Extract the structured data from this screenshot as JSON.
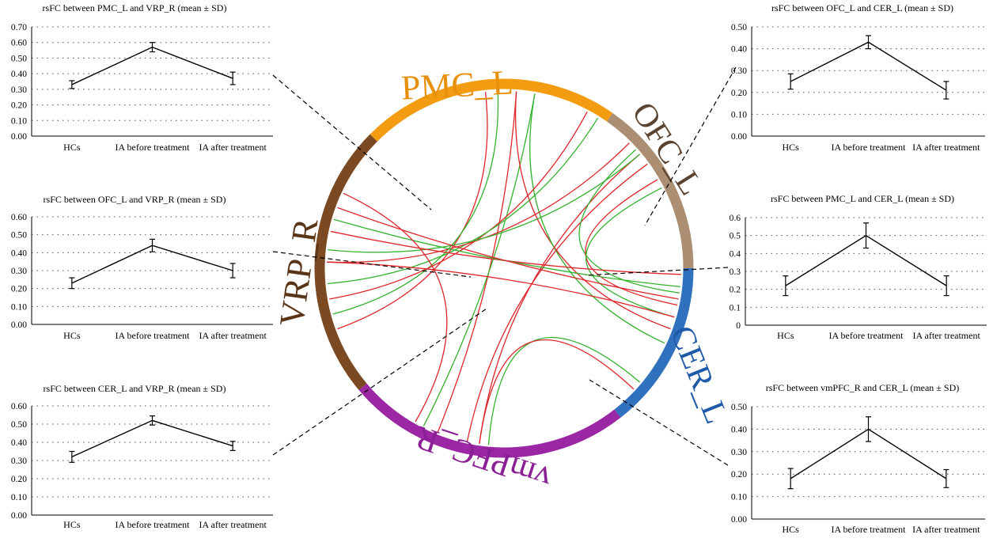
{
  "figure": {
    "circle_labels": [
      {
        "key": "pmc",
        "text": "PMC_L",
        "color": "#e8900c"
      },
      {
        "key": "ofc",
        "text": "OFC_L",
        "color": "#5a4330"
      },
      {
        "key": "cer",
        "text": "CER_L",
        "color": "#1f5aa8"
      },
      {
        "key": "vmpfc",
        "text": "vmPFC_R",
        "color": "#8b1f96"
      },
      {
        "key": "vrp",
        "text": "VRP_R",
        "color": "#5a3417"
      }
    ],
    "segment_colors": {
      "pmc": "#f39c11",
      "ofc": "#ac8f73",
      "cer": "#3071bd",
      "vmpfc": "#9c27a5",
      "vrp": "#7b4a22"
    },
    "link_colors": {
      "red": "#e0262b",
      "green": "#33b22c"
    }
  },
  "chart_data": [
    {
      "type": "line",
      "title": "rsFC between PMC_L and VRP_R (mean ± SD)",
      "categories": [
        "HCs",
        "IA before treatment",
        "IA after treatment"
      ],
      "values": [
        0.33,
        0.57,
        0.37
      ],
      "errors": [
        0.025,
        0.03,
        0.04
      ],
      "ylim": [
        0,
        0.7
      ],
      "yticks": [
        "0.00",
        "0.10",
        "0.20",
        "0.30",
        "0.40",
        "0.50",
        "0.60",
        "0.70"
      ],
      "grid": "dotted horizontal"
    },
    {
      "type": "line",
      "title": "rsFC between OFC_L and VRP_R (mean ± SD)",
      "categories": [
        "HCs",
        "IA before treatment",
        "IA after treatment"
      ],
      "values": [
        0.23,
        0.44,
        0.3
      ],
      "errors": [
        0.03,
        0.035,
        0.04
      ],
      "ylim": [
        0,
        0.6
      ],
      "yticks": [
        "0.00",
        "0.10",
        "0.20",
        "0.30",
        "0.40",
        "0.50",
        "0.60"
      ],
      "grid": "dotted horizontal"
    },
    {
      "type": "line",
      "title": "rsFC between CER_L and VRP_R (mean ± SD)",
      "categories": [
        "HCs",
        "IA before treatment",
        "IA after treatment"
      ],
      "values": [
        0.32,
        0.52,
        0.38
      ],
      "errors": [
        0.03,
        0.025,
        0.025
      ],
      "ylim": [
        0,
        0.6
      ],
      "yticks": [
        "0.00",
        "0.10",
        "0.20",
        "0.30",
        "0.40",
        "0.50",
        "0.60"
      ],
      "grid": "dotted horizontal"
    },
    {
      "type": "line",
      "title": "rsFC between OFC_L and CER_L (mean ± SD)",
      "categories": [
        "HCs",
        "IA before treatment",
        "IA after treatment"
      ],
      "values": [
        0.25,
        0.43,
        0.21
      ],
      "errors": [
        0.035,
        0.03,
        0.04
      ],
      "ylim": [
        0,
        0.5
      ],
      "yticks": [
        "0.00",
        "0.10",
        "0.20",
        "0.30",
        "0.40",
        "0.50"
      ],
      "grid": "dotted horizontal"
    },
    {
      "type": "line",
      "title": "rsFC between PMC_L and CER_L (mean ± SD)",
      "categories": [
        "HCs",
        "IA before treatment",
        "IA after treatment"
      ],
      "values": [
        0.22,
        0.5,
        0.22
      ],
      "errors": [
        0.055,
        0.07,
        0.055
      ],
      "ylim": [
        0,
        0.6
      ],
      "yticks": [
        "0",
        "0.1",
        "0.2",
        "0.3",
        "0.4",
        "0.5",
        "0.6"
      ],
      "grid": "dotted horizontal"
    },
    {
      "type": "line",
      "title": "rsFC between vmPFC_R and CER_L (mean ± SD)",
      "categories": [
        "HCs",
        "IA before treatment",
        "IA after treatment"
      ],
      "values": [
        0.18,
        0.4,
        0.18
      ],
      "errors": [
        0.045,
        0.055,
        0.04
      ],
      "ylim": [
        0,
        0.5
      ],
      "yticks": [
        "0.00",
        "0.10",
        "0.20",
        "0.30",
        "0.40",
        "0.50"
      ],
      "grid": "dotted horizontal"
    }
  ]
}
